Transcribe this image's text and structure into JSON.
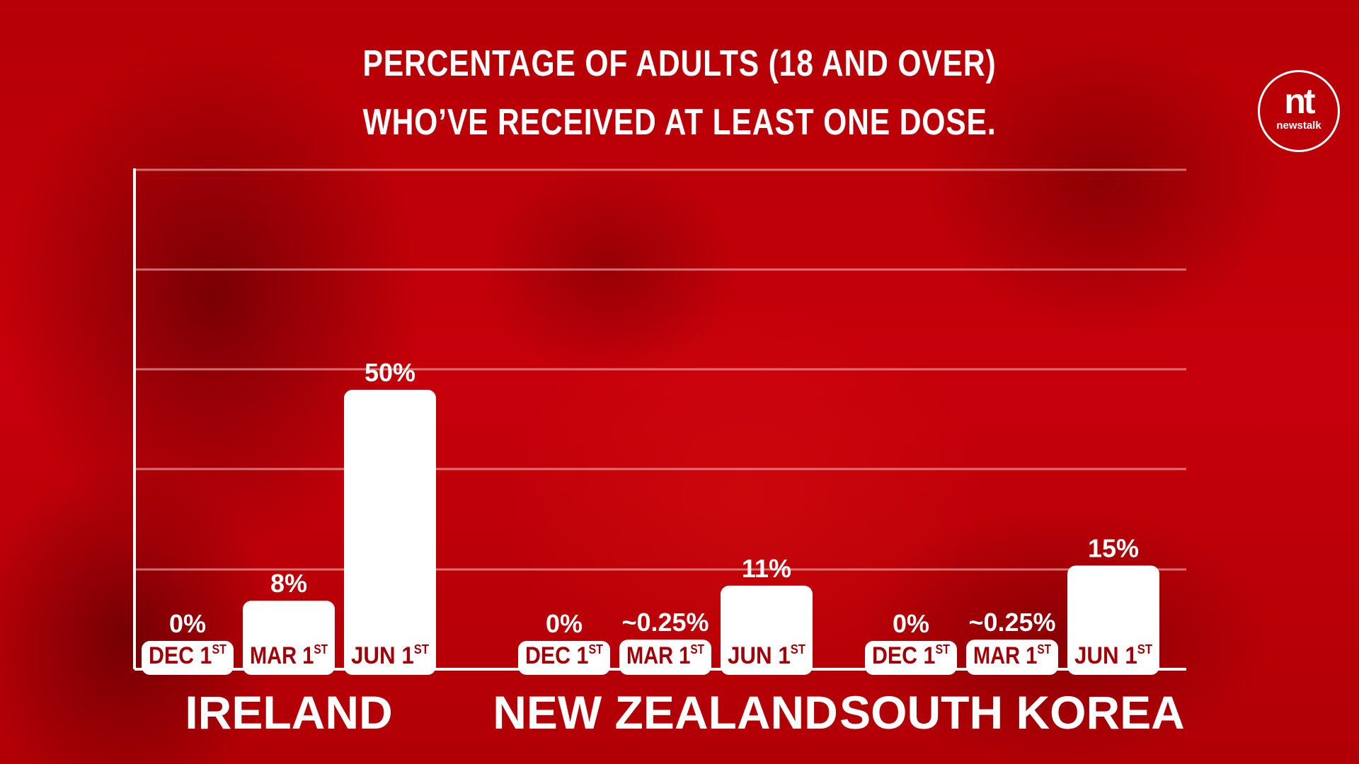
{
  "header": {
    "title_line_1": "PERCENTAGE OF ADULTS (18 AND OVER)",
    "title_line_2": "WHO’VE RECEIVED AT LEAST ONE DOSE."
  },
  "logo": {
    "mark": "nt",
    "word": "newstalk"
  },
  "colors": {
    "background": "#c20006",
    "bar": "#ffffff",
    "bar_label": "#a00008",
    "text": "#ffffff",
    "gridline": "#e8a0a0"
  },
  "chart_data": {
    "type": "bar",
    "title": "PERCENTAGE OF ADULTS (18 AND OVER) WHO’VE RECEIVED AT LEAST ONE DOSE.",
    "xlabel": "",
    "ylabel": "",
    "ylim": [
      0,
      100
    ],
    "grid": true,
    "legend": "none",
    "groups": [
      {
        "name": "IRELAND",
        "bars": [
          {
            "label": "DEC 1",
            "suffix": "ST",
            "value": 0,
            "value_label": "0%"
          },
          {
            "label": "MAR 1",
            "suffix": "ST",
            "value": 8,
            "value_label": "8%"
          },
          {
            "label": "JUN 1",
            "suffix": "ST",
            "value": 50,
            "value_label": "50%"
          }
        ]
      },
      {
        "name": "NEW ZEALAND",
        "bars": [
          {
            "label": "DEC 1",
            "suffix": "ST",
            "value": 0,
            "value_label": "0%"
          },
          {
            "label": "MAR 1",
            "suffix": "ST",
            "value": 0.25,
            "value_label": "~0.25%"
          },
          {
            "label": "JUN 1",
            "suffix": "ST",
            "value": 11,
            "value_label": "11%"
          }
        ]
      },
      {
        "name": "SOUTH KOREA",
        "bars": [
          {
            "label": "DEC 1",
            "suffix": "ST",
            "value": 0,
            "value_label": "0%"
          },
          {
            "label": "MAR 1",
            "suffix": "ST",
            "value": 0.25,
            "value_label": "~0.25%"
          },
          {
            "label": "JUN 1",
            "suffix": "ST",
            "value": 15,
            "value_label": "15%"
          }
        ]
      }
    ]
  }
}
